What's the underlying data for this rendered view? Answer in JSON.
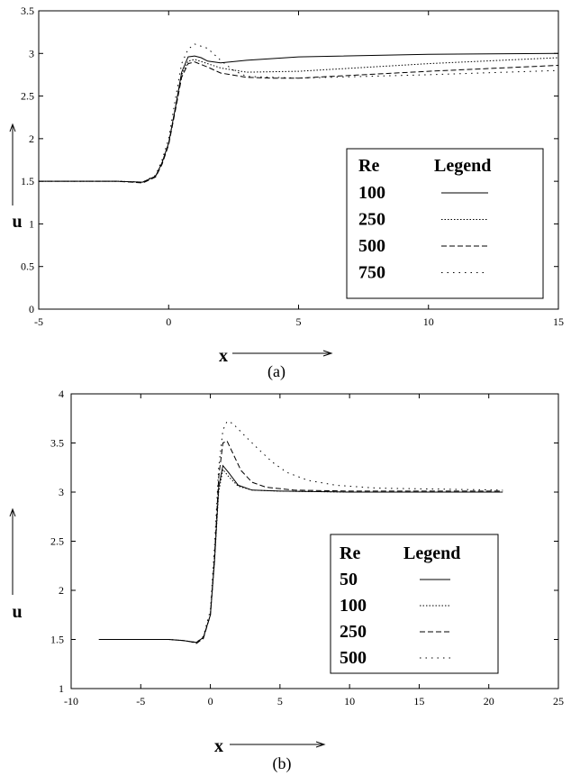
{
  "chart_data": [
    {
      "type": "line",
      "caption": "(a)",
      "xlabel": "x",
      "ylabel": "u",
      "xlim": [
        -5,
        15
      ],
      "ylim": [
        0,
        3.5
      ],
      "x_ticks": [
        "-5",
        "0",
        "5",
        "10",
        "15"
      ],
      "y_ticks": [
        "0",
        "0.5",
        "1",
        "1.5",
        "2",
        "2.5",
        "3",
        "3.5"
      ],
      "grid": false,
      "legend_position": "lower-right",
      "legend": {
        "header_name": "Re",
        "header_style": "Legend"
      },
      "series": [
        {
          "name": "100",
          "dash": "solid",
          "points": [
            [
              -5,
              1.5
            ],
            [
              -2,
              1.5
            ],
            [
              -1,
              1.49
            ],
            [
              -0.5,
              1.56
            ],
            [
              -0.25,
              1.72
            ],
            [
              0,
              1.95
            ],
            [
              0.25,
              2.35
            ],
            [
              0.5,
              2.78
            ],
            [
              0.75,
              2.96
            ],
            [
              1,
              2.97
            ],
            [
              1.25,
              2.95
            ],
            [
              1.5,
              2.91
            ],
            [
              2,
              2.89
            ],
            [
              3,
              2.92
            ],
            [
              5,
              2.96
            ],
            [
              10,
              2.99
            ],
            [
              15,
              3.0
            ]
          ]
        },
        {
          "name": "250",
          "dash": "dotted",
          "points": [
            [
              -5,
              1.5
            ],
            [
              -2,
              1.5
            ],
            [
              -1,
              1.49
            ],
            [
              -0.5,
              1.56
            ],
            [
              -0.25,
              1.72
            ],
            [
              0,
              1.95
            ],
            [
              0.25,
              2.35
            ],
            [
              0.5,
              2.75
            ],
            [
              0.75,
              2.91
            ],
            [
              1,
              2.93
            ],
            [
              1.5,
              2.88
            ],
            [
              2,
              2.83
            ],
            [
              3,
              2.78
            ],
            [
              5,
              2.79
            ],
            [
              10,
              2.88
            ],
            [
              15,
              2.95
            ]
          ]
        },
        {
          "name": "500",
          "dash": "dashed",
          "points": [
            [
              -5,
              1.5
            ],
            [
              -2,
              1.5
            ],
            [
              -1,
              1.48
            ],
            [
              -0.5,
              1.55
            ],
            [
              -0.25,
              1.7
            ],
            [
              0,
              1.93
            ],
            [
              0.25,
              2.32
            ],
            [
              0.5,
              2.72
            ],
            [
              0.75,
              2.88
            ],
            [
              1,
              2.9
            ],
            [
              1.5,
              2.84
            ],
            [
              2,
              2.77
            ],
            [
              3,
              2.72
            ],
            [
              4,
              2.71
            ],
            [
              5,
              2.71
            ],
            [
              10,
              2.79
            ],
            [
              15,
              2.86
            ]
          ]
        },
        {
          "name": "750",
          "dash": "sparse-dotted",
          "points": [
            [
              -5,
              1.5
            ],
            [
              -2,
              1.5
            ],
            [
              -1,
              1.49
            ],
            [
              -0.5,
              1.57
            ],
            [
              -0.25,
              1.75
            ],
            [
              0,
              2.0
            ],
            [
              0.25,
              2.45
            ],
            [
              0.5,
              2.88
            ],
            [
              0.75,
              3.05
            ],
            [
              1,
              3.11
            ],
            [
              1.5,
              3.06
            ],
            [
              2,
              2.92
            ],
            [
              2.5,
              2.8
            ],
            [
              3,
              2.73
            ],
            [
              5,
              2.71
            ],
            [
              10,
              2.75
            ],
            [
              15,
              2.8
            ]
          ]
        }
      ]
    },
    {
      "type": "line",
      "caption": "(b)",
      "xlabel": "x",
      "ylabel": "u",
      "xlim": [
        -10,
        25
      ],
      "ylim": [
        1,
        4
      ],
      "x_ticks": [
        "-10",
        "-5",
        "0",
        "5",
        "10",
        "15",
        "20",
        "25"
      ],
      "y_ticks": [
        "1",
        "1.5",
        "2",
        "2.5",
        "3",
        "3.5",
        "4"
      ],
      "grid": false,
      "legend_position": "lower-right",
      "legend": {
        "header_name": "Re",
        "header_style": "Legend"
      },
      "series": [
        {
          "name": "50",
          "dash": "solid",
          "points": [
            [
              -8,
              1.5
            ],
            [
              -3,
              1.5
            ],
            [
              -2,
              1.49
            ],
            [
              -1.5,
              1.48
            ],
            [
              -1,
              1.47
            ],
            [
              -0.5,
              1.52
            ],
            [
              0,
              1.75
            ],
            [
              0.3,
              2.3
            ],
            [
              0.6,
              3.05
            ],
            [
              0.9,
              3.27
            ],
            [
              1.3,
              3.2
            ],
            [
              2,
              3.07
            ],
            [
              3,
              3.02
            ],
            [
              5,
              3.01
            ],
            [
              10,
              3.0
            ],
            [
              21,
              3.0
            ]
          ]
        },
        {
          "name": "100",
          "dash": "dotted",
          "points": [
            [
              -8,
              1.5
            ],
            [
              -3,
              1.5
            ],
            [
              -2,
              1.49
            ],
            [
              -1.5,
              1.48
            ],
            [
              -1,
              1.47
            ],
            [
              -0.5,
              1.52
            ],
            [
              0,
              1.75
            ],
            [
              0.3,
              2.3
            ],
            [
              0.6,
              3.0
            ],
            [
              0.9,
              3.23
            ],
            [
              1.3,
              3.16
            ],
            [
              2,
              3.06
            ],
            [
              3,
              3.02
            ],
            [
              5,
              3.01
            ],
            [
              10,
              3.0
            ],
            [
              21,
              3.0
            ]
          ]
        },
        {
          "name": "250",
          "dash": "dashed",
          "points": [
            [
              -8,
              1.5
            ],
            [
              -3,
              1.5
            ],
            [
              -2,
              1.49
            ],
            [
              -1.5,
              1.48
            ],
            [
              -1,
              1.46
            ],
            [
              -0.5,
              1.51
            ],
            [
              0,
              1.75
            ],
            [
              0.3,
              2.35
            ],
            [
              0.6,
              3.15
            ],
            [
              0.9,
              3.5
            ],
            [
              1.2,
              3.52
            ],
            [
              1.6,
              3.4
            ],
            [
              2.2,
              3.22
            ],
            [
              3,
              3.1
            ],
            [
              4,
              3.05
            ],
            [
              6,
              3.02
            ],
            [
              10,
              3.01
            ],
            [
              21,
              3.01
            ]
          ]
        },
        {
          "name": "500",
          "dash": "sparse-dotted",
          "points": [
            [
              -8,
              1.5
            ],
            [
              -3,
              1.5
            ],
            [
              -2,
              1.49
            ],
            [
              -1.5,
              1.48
            ],
            [
              -1,
              1.47
            ],
            [
              -0.5,
              1.53
            ],
            [
              0,
              1.8
            ],
            [
              0.3,
              2.45
            ],
            [
              0.6,
              3.25
            ],
            [
              0.9,
              3.63
            ],
            [
              1.2,
              3.72
            ],
            [
              1.6,
              3.7
            ],
            [
              2.5,
              3.57
            ],
            [
              3.5,
              3.43
            ],
            [
              4.5,
              3.3
            ],
            [
              5.5,
              3.2
            ],
            [
              7,
              3.12
            ],
            [
              9,
              3.07
            ],
            [
              12,
              3.04
            ],
            [
              21,
              3.02
            ]
          ]
        }
      ]
    }
  ]
}
